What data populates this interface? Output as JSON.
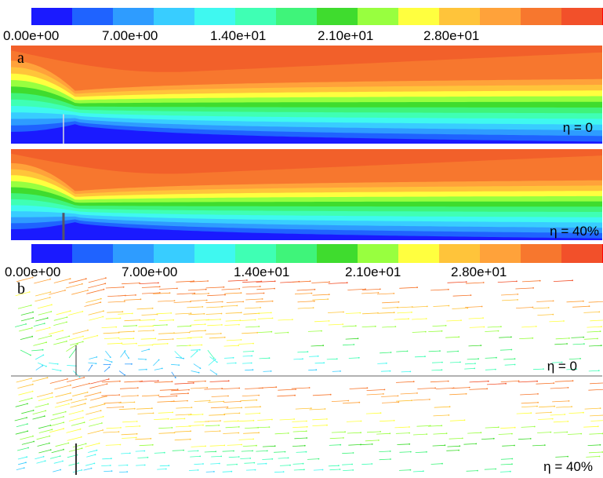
{
  "colorbars": [
    {
      "ticks": [
        "0.00e+00",
        "7.00e+00",
        "1.40e+01",
        "2.10e+01",
        "2.80e+01"
      ]
    },
    {
      "ticks": [
        "0.00e+00",
        "7.00e+00",
        "1.40e+01",
        "2.10e+01",
        "2.80e+01"
      ]
    }
  ],
  "panels": [
    {
      "label": "a",
      "cases": [
        "η = 0",
        "η = 40%"
      ]
    },
    {
      "label": "b",
      "cases": [
        "η = 0",
        "η = 40%"
      ]
    }
  ]
}
